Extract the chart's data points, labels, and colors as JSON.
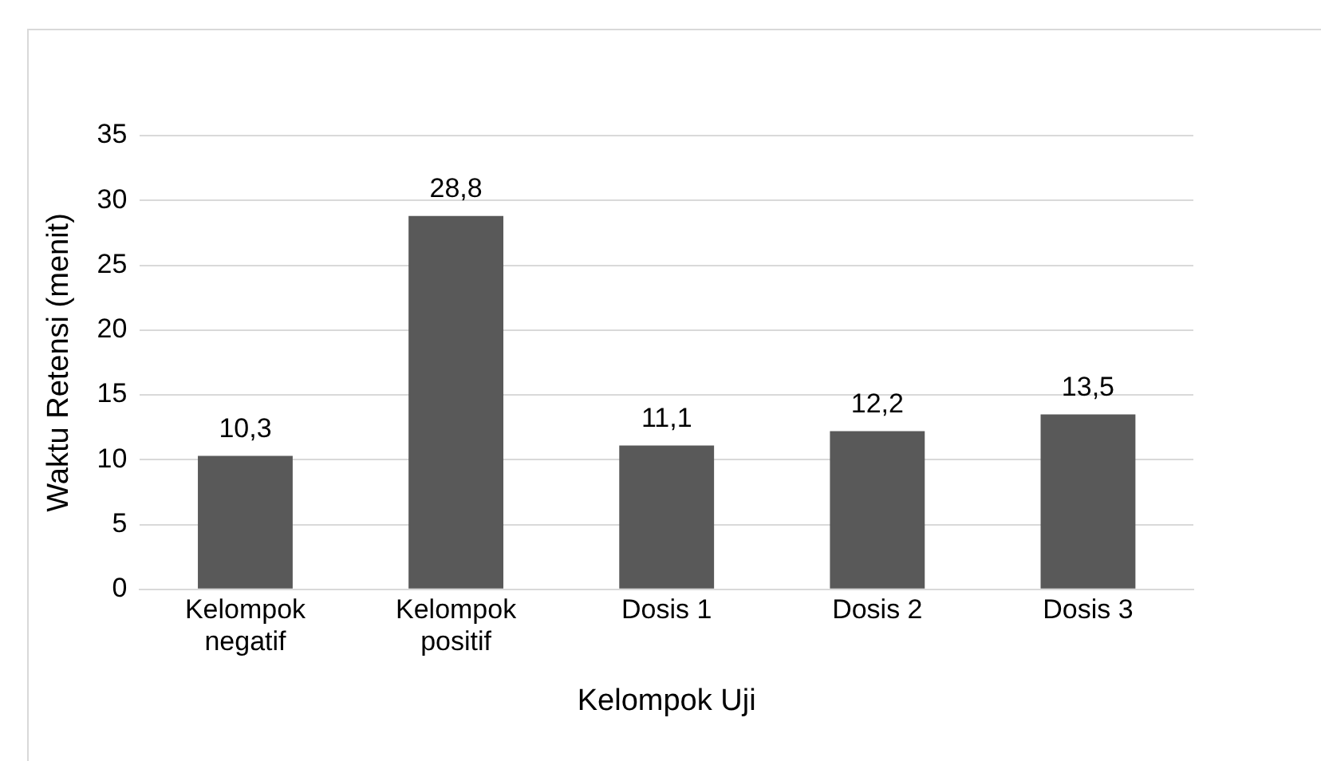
{
  "chart_data": {
    "type": "bar",
    "xlabel": "Kelompok Uji",
    "ylabel": "Waktu Retensi (menit)",
    "categories": [
      "Kelompok negatif",
      "Kelompok positif",
      "Dosis 1",
      "Dosis 2",
      "Dosis 3"
    ],
    "values": [
      10.3,
      28.8,
      11.1,
      12.2,
      13.5
    ],
    "color": "#595959",
    "value_labels": [
      "10,3",
      "28,8",
      "11,1",
      "12,2",
      "13,5"
    ],
    "ylim": [
      0,
      35
    ],
    "yticks": [
      0,
      5,
      10,
      15,
      20,
      25,
      30,
      35
    ],
    "grid": "y",
    "legend": false
  }
}
